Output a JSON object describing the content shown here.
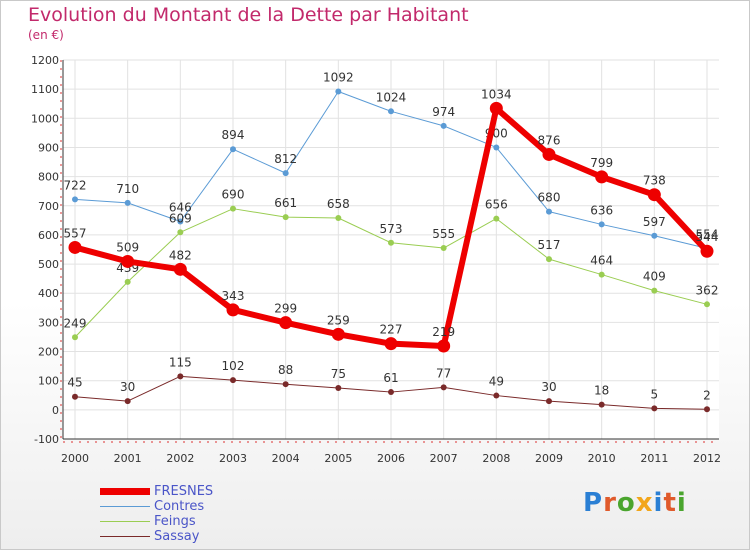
{
  "title": "Evolution du Montant de la Dette par Habitant",
  "subtitle": "(en €)",
  "brand": {
    "text": "Proxiti",
    "colors": [
      "#2a7fd4",
      "#e05a2b",
      "#4aa52e",
      "#f2a61b",
      "#2a7fd4",
      "#e05a2b",
      "#4aa52e"
    ]
  },
  "chart_data": {
    "type": "line",
    "x": [
      "2000",
      "2001",
      "2002",
      "2003",
      "2004",
      "2005",
      "2006",
      "2007",
      "2008",
      "2009",
      "2010",
      "2011",
      "2012"
    ],
    "ylim": [
      -100,
      1200
    ],
    "yticks": [
      "-100",
      "0",
      "100",
      "200",
      "300",
      "400",
      "500",
      "600",
      "700",
      "800",
      "900",
      "1000",
      "1100",
      "1200"
    ],
    "grid": true,
    "legend_position": "bottom-left",
    "series": [
      {
        "name": "Contres",
        "color": "#5b9bd5",
        "width": 1,
        "values": [
          722,
          710,
          646,
          894,
          812,
          1092,
          1024,
          974,
          900,
          680,
          636,
          597,
          554
        ],
        "labels": [
          "722",
          "710",
          "646",
          "894",
          "812",
          "1092",
          "1024",
          "974",
          "900",
          "680",
          "636",
          "597",
          "554"
        ]
      },
      {
        "name": "Feings",
        "color": "#9acd52",
        "width": 1,
        "values": [
          249,
          439,
          609,
          690,
          661,
          658,
          573,
          555,
          656,
          517,
          464,
          409,
          362
        ],
        "labels": [
          "249",
          "439",
          "609",
          "690",
          "661",
          "658",
          "573",
          "555",
          "656",
          "517",
          "464",
          "409",
          "362"
        ]
      },
      {
        "name": "Sassay",
        "color": "#7a2a2a",
        "width": 1,
        "values": [
          45,
          30,
          115,
          102,
          88,
          75,
          61,
          77,
          49,
          30,
          18,
          5,
          2
        ],
        "labels": [
          "45",
          "30",
          "115",
          "102",
          "88",
          "75",
          "61",
          "77",
          "49",
          "30",
          "18",
          "5",
          "2"
        ]
      },
      {
        "name": "FRESNES",
        "color": "#ee0000",
        "width": 6,
        "values": [
          557,
          509,
          482,
          343,
          299,
          259,
          227,
          219,
          1034,
          876,
          799,
          738,
          544
        ],
        "labels": [
          "557",
          "509",
          "482",
          "343",
          "299",
          "259",
          "227",
          "219",
          "1034",
          "876",
          "799",
          "738",
          "544"
        ]
      }
    ],
    "legend_order": [
      "FRESNES",
      "Contres",
      "Feings",
      "Sassay"
    ]
  }
}
